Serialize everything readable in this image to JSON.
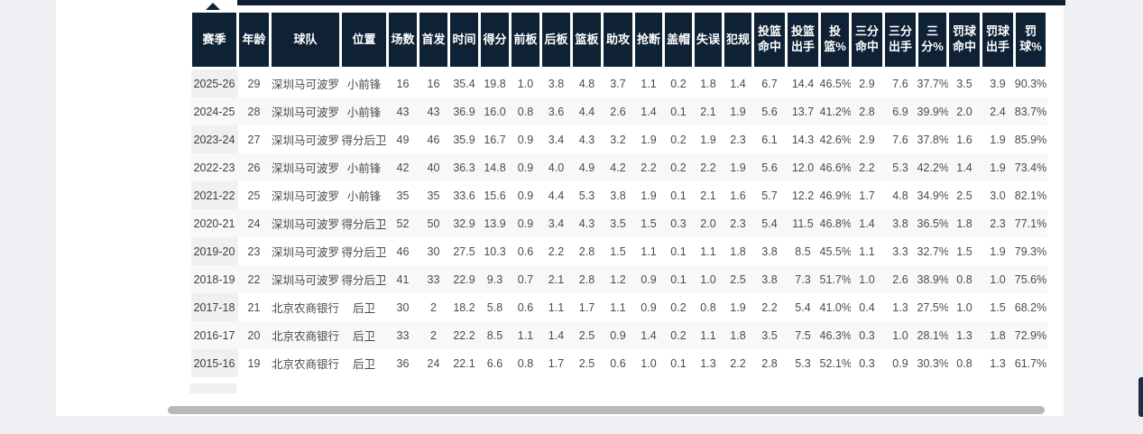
{
  "colors": {
    "page_bg": "#eef0f4",
    "card_bg": "#ffffff",
    "header_bg": "#0e2135",
    "header_text": "#ffffff",
    "row_alt_bg": "#f8f8f8",
    "season_col_bg": "#f0f0f0",
    "scrollbar_thumb": "#b9b9b9",
    "vertical_scrollbar_thumb": "#1c2e42"
  },
  "table": {
    "columns": [
      "赛季",
      "年龄",
      "球队",
      "位置",
      "场数",
      "首发",
      "时间",
      "得分",
      "前板",
      "后板",
      "篮板",
      "助攻",
      "抢断",
      "盖帽",
      "失误",
      "犯规",
      "投篮命中",
      "投篮出手",
      "投篮%",
      "三分命中",
      "三分出手",
      "三分%",
      "罚球命中",
      "罚球出手",
      "罚球%"
    ],
    "rows": [
      [
        "2025-26",
        "29",
        "深圳马可波罗",
        "小前锋",
        "16",
        "16",
        "35.4",
        "19.8",
        "1.0",
        "3.8",
        "4.8",
        "3.7",
        "1.1",
        "0.2",
        "1.8",
        "1.4",
        "6.7",
        "14.4",
        "46.5%",
        "2.9",
        "7.6",
        "37.7%",
        "3.5",
        "3.9",
        "90.3%"
      ],
      [
        "2024-25",
        "28",
        "深圳马可波罗",
        "小前锋",
        "43",
        "43",
        "36.9",
        "16.0",
        "0.8",
        "3.6",
        "4.4",
        "2.6",
        "1.4",
        "0.1",
        "2.1",
        "1.9",
        "5.6",
        "13.7",
        "41.2%",
        "2.8",
        "6.9",
        "39.9%",
        "2.0",
        "2.4",
        "83.7%"
      ],
      [
        "2023-24",
        "27",
        "深圳马可波罗",
        "得分后卫",
        "49",
        "46",
        "35.9",
        "16.7",
        "0.9",
        "3.4",
        "4.3",
        "3.2",
        "1.9",
        "0.2",
        "1.9",
        "2.3",
        "6.1",
        "14.3",
        "42.6%",
        "2.9",
        "7.6",
        "37.8%",
        "1.6",
        "1.9",
        "85.9%"
      ],
      [
        "2022-23",
        "26",
        "深圳马可波罗",
        "小前锋",
        "42",
        "40",
        "36.3",
        "14.8",
        "0.9",
        "4.0",
        "4.9",
        "4.2",
        "2.2",
        "0.2",
        "2.2",
        "1.9",
        "5.6",
        "12.0",
        "46.6%",
        "2.2",
        "5.3",
        "42.2%",
        "1.4",
        "1.9",
        "73.4%"
      ],
      [
        "2021-22",
        "25",
        "深圳马可波罗",
        "小前锋",
        "35",
        "35",
        "33.6",
        "15.6",
        "0.9",
        "4.4",
        "5.3",
        "3.8",
        "1.9",
        "0.1",
        "2.1",
        "1.6",
        "5.7",
        "12.2",
        "46.9%",
        "1.7",
        "4.8",
        "34.9%",
        "2.5",
        "3.0",
        "82.1%"
      ],
      [
        "2020-21",
        "24",
        "深圳马可波罗",
        "得分后卫",
        "52",
        "50",
        "32.9",
        "13.9",
        "0.9",
        "3.4",
        "4.3",
        "3.5",
        "1.5",
        "0.3",
        "2.0",
        "2.3",
        "5.4",
        "11.5",
        "46.8%",
        "1.4",
        "3.8",
        "36.5%",
        "1.8",
        "2.3",
        "77.1%"
      ],
      [
        "2019-20",
        "23",
        "深圳马可波罗",
        "得分后卫",
        "46",
        "30",
        "27.5",
        "10.3",
        "0.6",
        "2.2",
        "2.8",
        "1.5",
        "1.1",
        "0.1",
        "1.1",
        "1.8",
        "3.8",
        "8.5",
        "45.5%",
        "1.1",
        "3.3",
        "32.7%",
        "1.5",
        "1.9",
        "79.3%"
      ],
      [
        "2018-19",
        "22",
        "深圳马可波罗",
        "得分后卫",
        "41",
        "33",
        "22.9",
        "9.3",
        "0.7",
        "2.1",
        "2.8",
        "1.2",
        "0.9",
        "0.1",
        "1.0",
        "2.5",
        "3.8",
        "7.3",
        "51.7%",
        "1.0",
        "2.6",
        "38.9%",
        "0.8",
        "1.0",
        "75.6%"
      ],
      [
        "2017-18",
        "21",
        "北京农商银行",
        "后卫",
        "30",
        "2",
        "18.2",
        "5.8",
        "0.6",
        "1.1",
        "1.7",
        "1.1",
        "0.9",
        "0.2",
        "0.8",
        "1.9",
        "2.2",
        "5.4",
        "41.0%",
        "0.4",
        "1.3",
        "27.5%",
        "1.0",
        "1.5",
        "68.2%"
      ],
      [
        "2016-17",
        "20",
        "北京农商银行",
        "后卫",
        "33",
        "2",
        "22.2",
        "8.5",
        "1.1",
        "1.4",
        "2.5",
        "0.9",
        "1.4",
        "0.2",
        "1.1",
        "1.8",
        "3.5",
        "7.5",
        "46.3%",
        "0.3",
        "1.0",
        "28.1%",
        "1.3",
        "1.8",
        "72.9%"
      ],
      [
        "2015-16",
        "19",
        "北京农商银行",
        "后卫",
        "36",
        "24",
        "22.1",
        "6.6",
        "0.8",
        "1.7",
        "2.5",
        "0.6",
        "1.0",
        "0.1",
        "1.3",
        "2.2",
        "2.8",
        "5.3",
        "52.1%",
        "0.3",
        "0.9",
        "30.3%",
        "0.8",
        "1.3",
        "61.7%"
      ]
    ]
  }
}
